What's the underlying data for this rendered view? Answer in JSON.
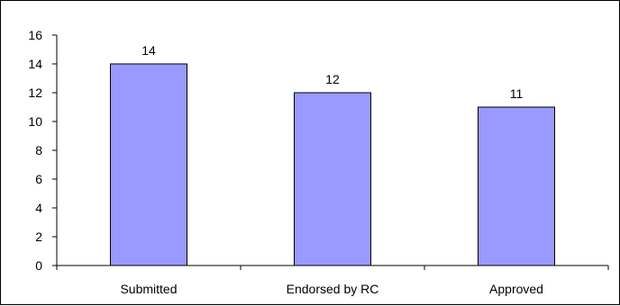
{
  "chart_data": {
    "type": "bar",
    "title": "",
    "xlabel": "",
    "ylabel": "",
    "categories": [
      "Submitted",
      "Endorsed by RC",
      "Approved"
    ],
    "values": [
      14,
      12,
      11
    ],
    "data_labels": [
      "14",
      "12",
      "11"
    ],
    "ylim": [
      0,
      16
    ],
    "yticks": [
      0,
      2,
      4,
      6,
      8,
      10,
      12,
      14,
      16
    ],
    "ytick_labels": [
      "0",
      "2",
      "4",
      "6",
      "8",
      "10",
      "12",
      "14",
      "16"
    ],
    "grid": false,
    "legend": "none",
    "bar_color": "#9999ff",
    "bar_edge_color": "#000000"
  }
}
